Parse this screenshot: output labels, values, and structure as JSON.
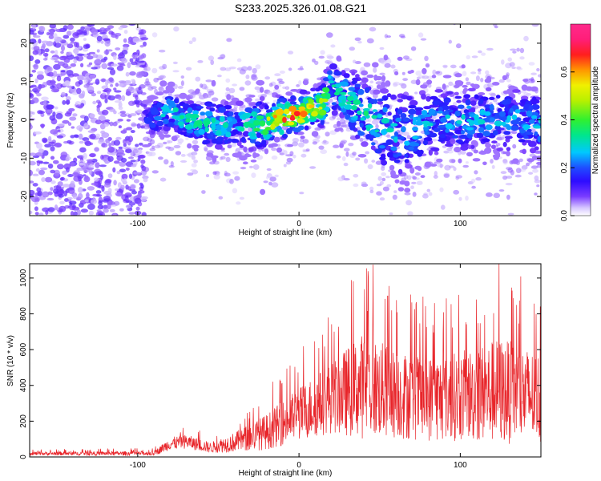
{
  "title": "S233.2025.326.01.08.G21",
  "chart_data": [
    {
      "type": "heatmap",
      "name": "spectrogram",
      "xlabel": "Height of straight line (km)",
      "ylabel": "Frequency (Hz)",
      "xlim": [
        -167,
        150
      ],
      "ylim": [
        -25,
        25
      ],
      "xticks": [
        -100,
        0,
        100
      ],
      "yticks": [
        -20,
        -10,
        0,
        10,
        20
      ],
      "colorbar": {
        "label": "Normalized spectral amplitude",
        "range": [
          0,
          0.8
        ],
        "ticks": [
          "0.0",
          "0.2",
          "0.4",
          "0.6"
        ]
      },
      "noise_region": {
        "x_range": [
          -167,
          -95
        ],
        "y_range": [
          -25,
          25
        ],
        "amplitude": 0.08
      },
      "ridge": [
        {
          "x": -95,
          "freq": 0,
          "width": 3,
          "amp": 0.15
        },
        {
          "x": -80,
          "freq": 2,
          "width": 3,
          "amp": 0.3
        },
        {
          "x": -70,
          "freq": 0,
          "width": 3,
          "amp": 0.3
        },
        {
          "x": -55,
          "freq": -1,
          "width": 4,
          "amp": 0.3
        },
        {
          "x": -40,
          "freq": -2,
          "width": 4,
          "amp": 0.25
        },
        {
          "x": -25,
          "freq": -1,
          "width": 4,
          "amp": 0.35
        },
        {
          "x": -15,
          "freq": 0,
          "width": 3,
          "amp": 0.55
        },
        {
          "x": -5,
          "freq": 1,
          "width": 3,
          "amp": 0.6
        },
        {
          "x": 5,
          "freq": 2,
          "width": 3,
          "amp": 0.55
        },
        {
          "x": 15,
          "freq": 4,
          "width": 3,
          "amp": 0.45
        },
        {
          "x": 20,
          "freq": 9,
          "width": 4,
          "amp": 0.3
        },
        {
          "x": 30,
          "freq": 5,
          "width": 5,
          "amp": 0.3
        },
        {
          "x": 45,
          "freq": 0,
          "width": 6,
          "amp": 0.3
        },
        {
          "x": 60,
          "freq": -4,
          "width": 7,
          "amp": 0.25
        },
        {
          "x": 75,
          "freq": -2,
          "width": 6,
          "amp": 0.25
        },
        {
          "x": 90,
          "freq": 0,
          "width": 5,
          "amp": 0.25
        },
        {
          "x": 110,
          "freq": 0,
          "width": 5,
          "amp": 0.25
        },
        {
          "x": 130,
          "freq": 0,
          "width": 5,
          "amp": 0.25
        },
        {
          "x": 150,
          "freq": -1,
          "width": 5,
          "amp": 0.25
        }
      ]
    },
    {
      "type": "line",
      "name": "snr",
      "xlabel": "Height of straight line (km)",
      "ylabel": "SNR (10 * v/v)",
      "xlim": [
        -167,
        150
      ],
      "ylim": [
        0,
        1080
      ],
      "xticks": [
        -100,
        0,
        100
      ],
      "yticks": [
        0,
        200,
        400,
        600,
        800,
        1000
      ],
      "color": "#e8252a",
      "envelope": [
        {
          "x": -167,
          "base": 15,
          "spread": 20
        },
        {
          "x": -90,
          "base": 15,
          "spread": 25
        },
        {
          "x": -80,
          "base": 60,
          "spread": 70
        },
        {
          "x": -70,
          "base": 70,
          "spread": 80
        },
        {
          "x": -55,
          "base": 40,
          "spread": 60
        },
        {
          "x": -40,
          "base": 60,
          "spread": 110
        },
        {
          "x": -20,
          "base": 100,
          "spread": 200
        },
        {
          "x": 0,
          "base": 180,
          "spread": 300
        },
        {
          "x": 20,
          "base": 250,
          "spread": 400
        },
        {
          "x": 40,
          "base": 280,
          "spread": 600
        },
        {
          "x": 60,
          "base": 250,
          "spread": 500
        },
        {
          "x": 80,
          "base": 230,
          "spread": 480
        },
        {
          "x": 100,
          "base": 240,
          "spread": 500
        },
        {
          "x": 125,
          "base": 250,
          "spread": 600
        },
        {
          "x": 150,
          "base": 230,
          "spread": 500
        }
      ],
      "peaks": [
        {
          "x": 46,
          "y": 1075
        },
        {
          "x": 124,
          "y": 1080
        },
        {
          "x": 18,
          "y": 780
        },
        {
          "x": 55,
          "y": 900
        },
        {
          "x": 84,
          "y": 860
        },
        {
          "x": 110,
          "y": 880
        },
        {
          "x": 135,
          "y": 850
        },
        {
          "x": 147,
          "y": 800
        }
      ]
    }
  ]
}
